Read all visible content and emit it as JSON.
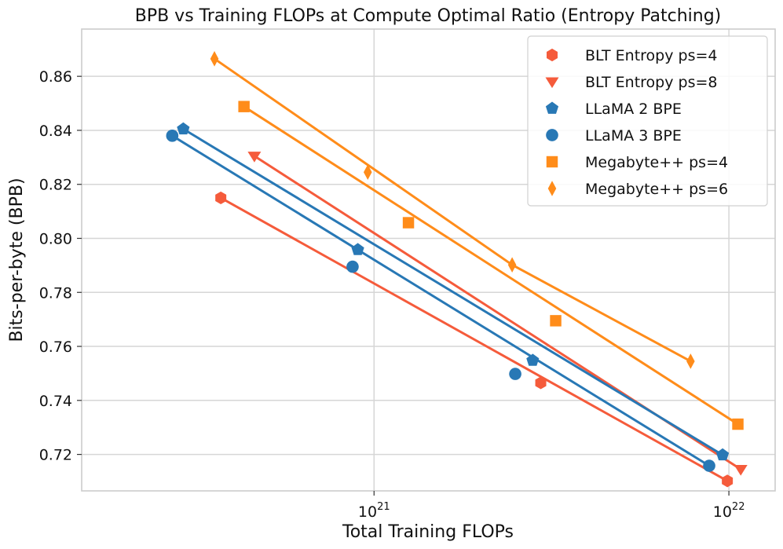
{
  "chart_data": {
    "type": "scatter",
    "title": "BPB vs Training FLOPs at Compute Optimal Ratio (Entropy Patching)",
    "xlabel": "Total Training FLOPs",
    "ylabel": "Bits-per-byte (BPB)",
    "xscale": "log",
    "xlim": [
      1.5e+20,
      1.35e+22
    ],
    "ylim": [
      0.7065,
      0.8775
    ],
    "xticks": [
      {
        "value": 1e+21,
        "base": "10",
        "exp": "21"
      },
      {
        "value": 1e+22,
        "base": "10",
        "exp": "22"
      }
    ],
    "yticks": [
      0.72,
      0.74,
      0.76,
      0.78,
      0.8,
      0.82,
      0.84,
      0.86
    ],
    "ytick_labels": [
      "0.72",
      "0.74",
      "0.76",
      "0.78",
      "0.80",
      "0.82",
      "0.84",
      "0.86"
    ],
    "grid": true,
    "legend_position": "top-right",
    "series": [
      {
        "name": "BLT Entropy ps=4",
        "color": "#f55b3b",
        "marker": "hexagon",
        "x": [
          3.7e+20,
          2.95e+21,
          9.9e+21
        ],
        "y": [
          0.815,
          0.7465,
          0.7102
        ],
        "fit": {
          "x": [
            3.7e+20,
            9.9e+21
          ],
          "y": [
            0.815,
            0.7102
          ]
        }
      },
      {
        "name": "BLT Entropy ps=8",
        "color": "#f55b3b",
        "marker": "triangle-down",
        "x": [
          4.6e+20,
          1.08e+22
        ],
        "y": [
          0.8305,
          0.7145
        ],
        "fit": {
          "x": [
            4.6e+20,
            1.08e+22
          ],
          "y": [
            0.8305,
            0.7145
          ]
        }
      },
      {
        "name": "LLaMA 2 BPE",
        "color": "#2878b5",
        "marker": "pentagon",
        "x": [
          2.9e+20,
          9e+20,
          2.8e+21,
          9.6e+21
        ],
        "y": [
          0.8405,
          0.7958,
          0.7548,
          0.7198
        ],
        "fit": {
          "x": [
            2.9e+20,
            9.6e+21
          ],
          "y": [
            0.8405,
            0.7198
          ]
        }
      },
      {
        "name": "LLaMA 3 BPE",
        "color": "#2878b5",
        "marker": "circle",
        "x": [
          2.7e+20,
          8.7e+20,
          2.5e+21,
          8.8e+21
        ],
        "y": [
          0.838,
          0.7895,
          0.7498,
          0.7158
        ],
        "fit": {
          "x": [
            2.7e+20,
            8.8e+21
          ],
          "y": [
            0.838,
            0.7158
          ]
        }
      },
      {
        "name": "Megabyte++ ps=4",
        "color": "#ff8c1a",
        "marker": "square",
        "x": [
          4.3e+20,
          1.25e+21,
          3.25e+21,
          1.06e+22
        ],
        "y": [
          0.8488,
          0.8058,
          0.7695,
          0.7312
        ],
        "fit": {
          "x": [
            4.3e+20,
            1.06e+22
          ],
          "y": [
            0.8488,
            0.7312
          ]
        }
      },
      {
        "name": "Megabyte++ ps=6",
        "color": "#ff8c1a",
        "marker": "diamond",
        "x": [
          3.55e+20,
          9.6e+20,
          2.45e+21,
          7.8e+21
        ],
        "y": [
          0.8665,
          0.8245,
          0.7902,
          0.7545
        ],
        "fit": {
          "x": [
            3.55e+20,
            2.45e+21,
            7.8e+21
          ],
          "y": [
            0.8665,
            0.7902,
            0.7545
          ]
        }
      }
    ]
  }
}
